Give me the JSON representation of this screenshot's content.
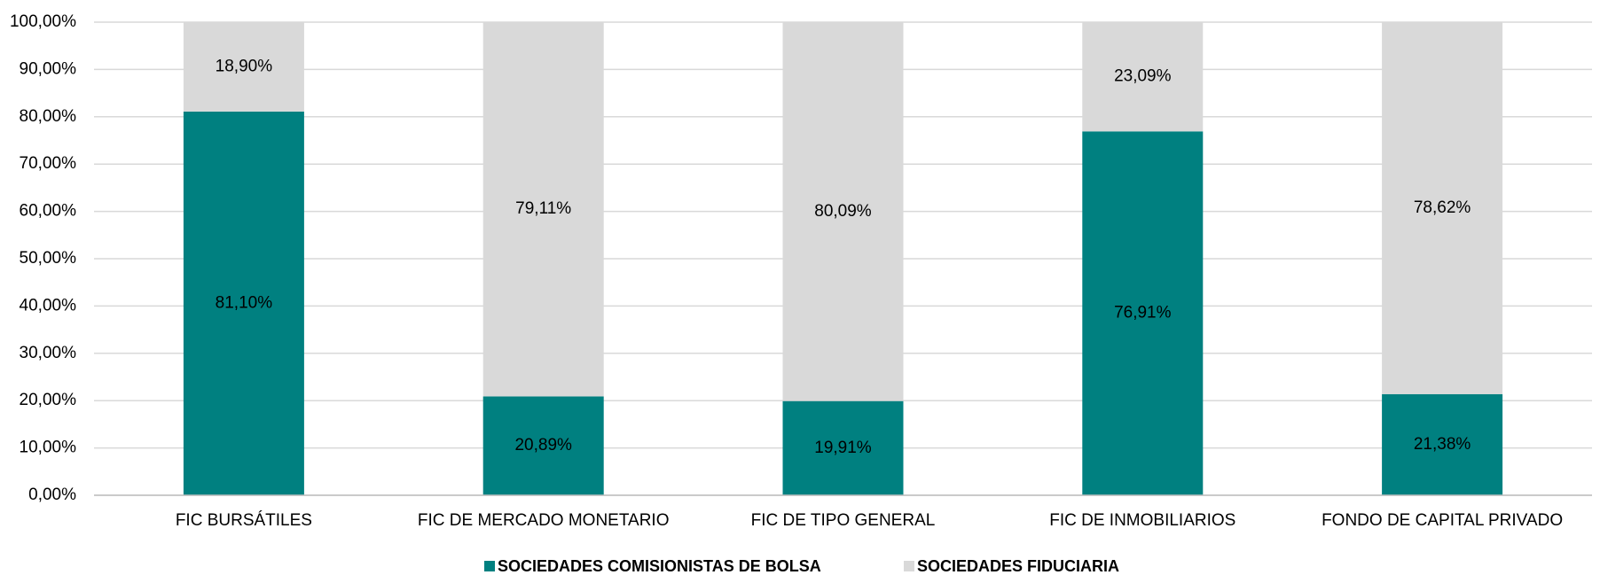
{
  "chart_data": {
    "type": "stacked_bar",
    "categories": [
      "FIC BURSÁTILES",
      "FIC DE MERCADO MONETARIO",
      "FIC DE TIPO GENERAL",
      "FIC DE INMOBILIARIOS",
      "FONDO DE CAPITAL PRIVADO"
    ],
    "series": [
      {
        "name": "SOCIEDADES COMISIONISTAS DE BOLSA",
        "color": "#008080",
        "values": [
          81.1,
          20.89,
          19.91,
          76.91,
          21.38
        ],
        "value_labels": [
          "81,10%",
          "20,89%",
          "19,91%",
          "76,91%",
          "21,38%"
        ]
      },
      {
        "name": "SOCIEDADES FIDUCIARIA",
        "color": "#d9d9d9",
        "values": [
          18.9,
          79.11,
          80.09,
          23.09,
          78.62
        ],
        "value_labels": [
          "18,90%",
          "79,11%",
          "80,09%",
          "23,09%",
          "78,62%"
        ]
      }
    ],
    "ylim": [
      0,
      100
    ],
    "yticks": [
      {
        "value": 0,
        "label": "0,00%"
      },
      {
        "value": 10,
        "label": "10,00%"
      },
      {
        "value": 20,
        "label": "20,00%"
      },
      {
        "value": 30,
        "label": "30,00%"
      },
      {
        "value": 40,
        "label": "40,00%"
      },
      {
        "value": 50,
        "label": "50,00%"
      },
      {
        "value": 60,
        "label": "60,00%"
      },
      {
        "value": 70,
        "label": "70,00%"
      },
      {
        "value": 80,
        "label": "80,00%"
      },
      {
        "value": 90,
        "label": "90,00%"
      },
      {
        "value": 100,
        "label": "100,00%"
      }
    ],
    "grid": true,
    "legend": "bottom"
  }
}
